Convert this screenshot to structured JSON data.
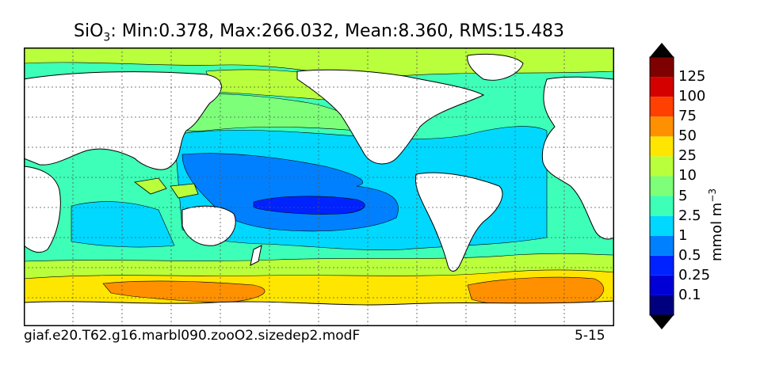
{
  "header": {
    "variable": "SiO",
    "variable_sub": "3",
    "stats": ": Min:0.378, Max:266.032, Mean:8.360, RMS:15.483"
  },
  "footer": {
    "case_name": "giaf.e20.T62.g16.marbl090.zooO2.sizedep2.modF",
    "years": "5-15"
  },
  "colorbar": {
    "units_base": "mmol m",
    "units_exp": "−3",
    "levels": [
      "0.1",
      "0.25",
      "0.5",
      "1",
      "2.5",
      "5",
      "10",
      "25",
      "50",
      "75",
      "100",
      "125"
    ],
    "colors": [
      "#00007f",
      "#0000d6",
      "#0022ff",
      "#0080ff",
      "#00d8ff",
      "#3dffb8",
      "#7dff7a",
      "#b9ff3c",
      "#ffe600",
      "#ff9000",
      "#ff4000",
      "#d40000",
      "#7f0000"
    ]
  },
  "map_colors": {
    "land": "#ffffff",
    "ocean_lowest": "#0022ff",
    "ocean_low": "#0080ff",
    "ocean_mid": "#00d8ff",
    "ocean_midhigh": "#3dffb8",
    "ocean_high": "#7dff7a",
    "ocean_higher": "#b9ff3c",
    "ocean_top": "#ffe600",
    "ocean_max": "#ff9000"
  }
}
